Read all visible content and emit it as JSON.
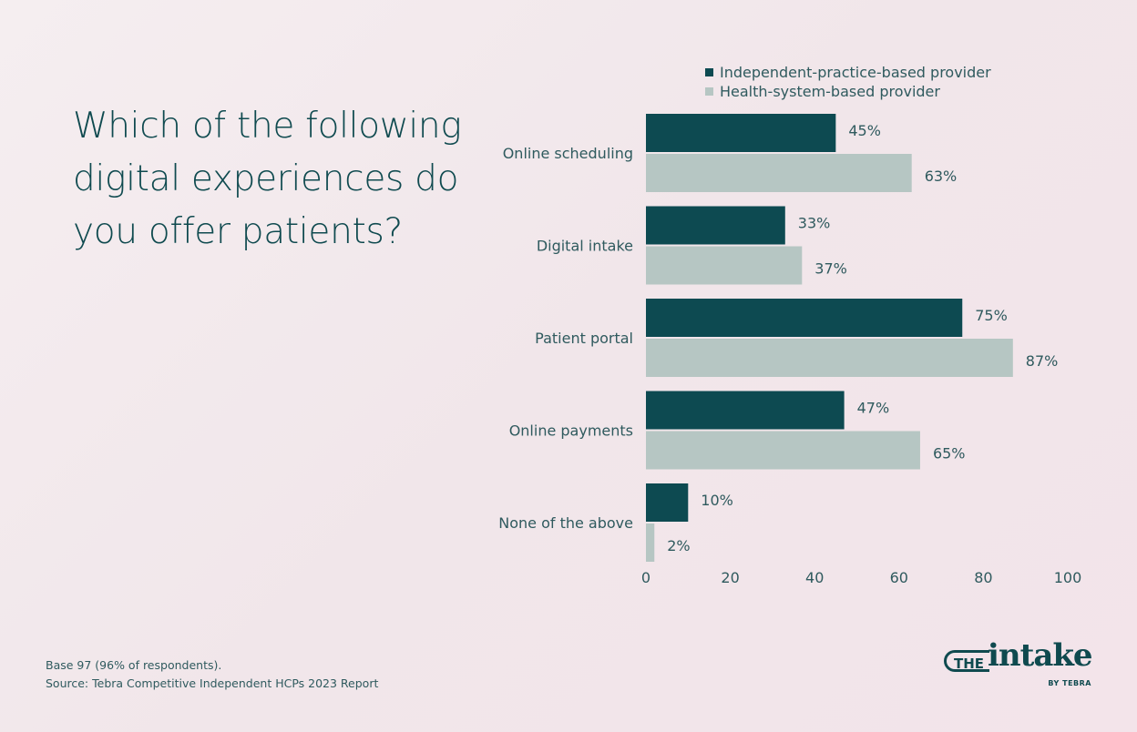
{
  "title": "Which of the following digital experiences do you offer patients?",
  "footer": {
    "base": "Base 97 (96% of respondents).",
    "source": "Source: Tebra Competitive Independent HCPs 2023 Report"
  },
  "logo": {
    "the": "THE",
    "intake": "intake",
    "by": "BY TEBRA"
  },
  "chart_data": {
    "type": "bar",
    "orientation": "horizontal",
    "categories": [
      "Online scheduling",
      "Digital intake",
      "Patient portal",
      "Online payments",
      "None of the above"
    ],
    "series": [
      {
        "name": "Independent-practice-based provider",
        "color": "#0d4a51",
        "values": [
          45,
          33,
          75,
          47,
          10
        ]
      },
      {
        "name": "Health-system-based provider",
        "color": "#b6c6c3",
        "values": [
          63,
          37,
          87,
          65,
          2
        ]
      }
    ],
    "value_suffix": "%",
    "xlim": [
      0,
      100
    ],
    "xticks": [
      0,
      20,
      40,
      60,
      80,
      100
    ],
    "legend": "top",
    "grid": false
  }
}
